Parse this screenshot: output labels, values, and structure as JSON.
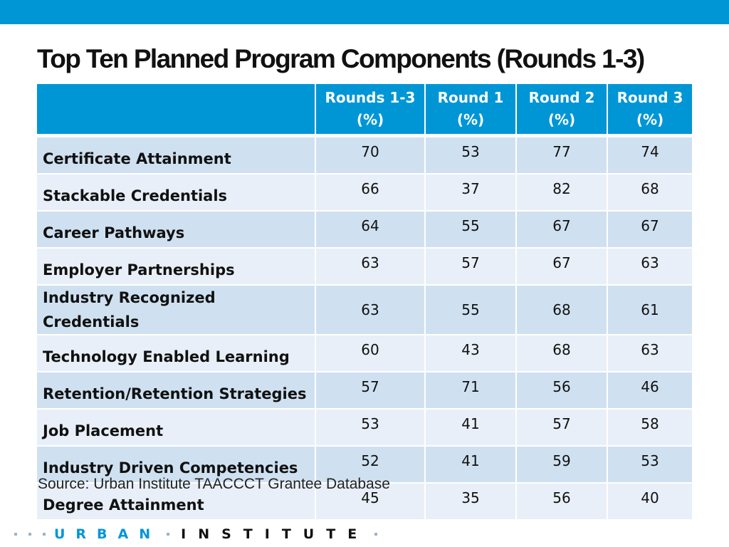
{
  "header": {
    "accent_color": "#0096d6"
  },
  "title": "Top Ten Planned Program Components (Rounds 1-3)",
  "chart_data": {
    "type": "table",
    "title": "Top Ten Planned Program Components (Rounds 1-3)",
    "columns": [
      {
        "line1": "Rounds 1-3",
        "line2": "(%)"
      },
      {
        "line1": "Round 1",
        "line2": "(%)"
      },
      {
        "line1": "Round 2",
        "line2": "(%)"
      },
      {
        "line1": "Round 3",
        "line2": "(%)"
      }
    ],
    "rows": [
      {
        "label": [
          "Certificate Attainment"
        ],
        "values": [
          70,
          53,
          77,
          74
        ]
      },
      {
        "label": [
          "Stackable Credentials"
        ],
        "values": [
          66,
          37,
          82,
          68
        ]
      },
      {
        "label": [
          "Career Pathways"
        ],
        "values": [
          64,
          55,
          67,
          67
        ]
      },
      {
        "label": [
          "Employer Partnerships"
        ],
        "values": [
          63,
          57,
          67,
          63
        ]
      },
      {
        "label": [
          "Industry Recognized",
          "Credentials"
        ],
        "values": [
          63,
          55,
          68,
          61
        ]
      },
      {
        "label": [
          "Technology Enabled Learning"
        ],
        "values": [
          60,
          43,
          68,
          63
        ]
      },
      {
        "label": [
          "Retention/Retention Strategies"
        ],
        "values": [
          57,
          71,
          56,
          46
        ]
      },
      {
        "label": [
          "Job Placement"
        ],
        "values": [
          53,
          41,
          57,
          58
        ]
      },
      {
        "label": [
          "Industry Driven Competencies"
        ],
        "values": [
          52,
          41,
          59,
          53
        ]
      },
      {
        "label": [
          "Degree Attainment"
        ],
        "values": [
          45,
          35,
          56,
          40
        ]
      }
    ]
  },
  "source": "Source: Urban Institute TAACCCT Grantee Database",
  "logo": {
    "word1": "URBAN",
    "word2": "INSTITUTE"
  }
}
